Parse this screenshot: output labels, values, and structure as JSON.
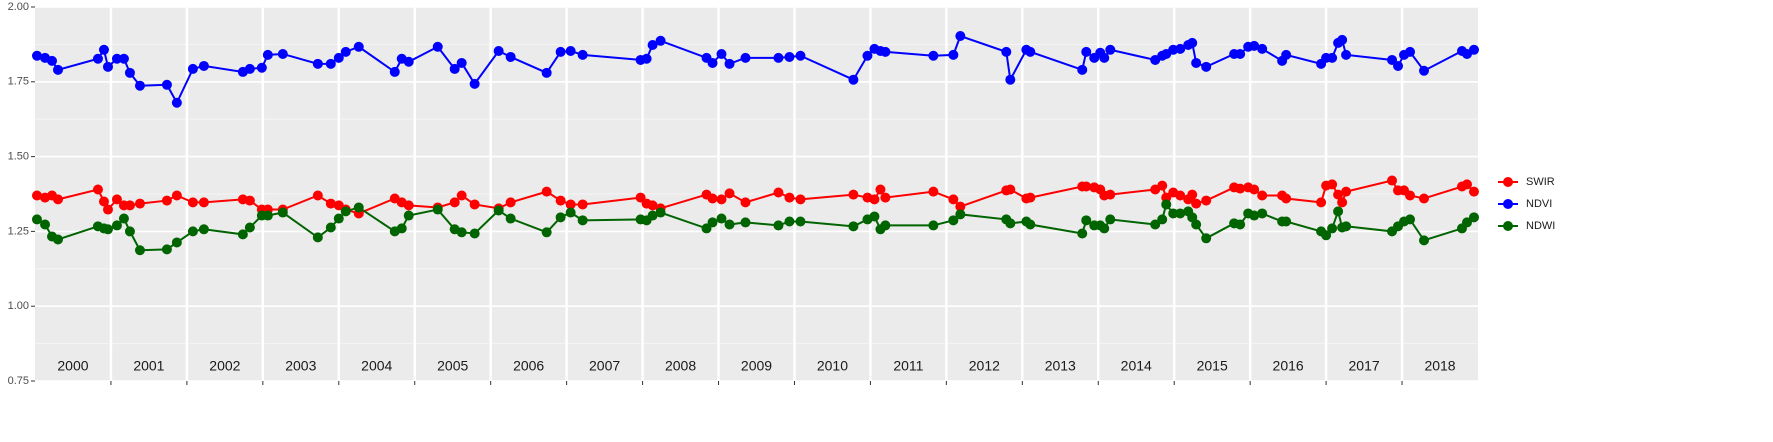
{
  "chart_data": {
    "type": "line",
    "x": [
      2000.026,
      2000.132,
      2000.224,
      2000.303,
      2000.829,
      2000.908,
      2000.961,
      2001.079,
      2001.171,
      2001.25,
      2001.382,
      2001.737,
      2001.868,
      2002.079,
      2002.224,
      2002.737,
      2002.829,
      2002.987,
      2003.066,
      2003.263,
      2003.724,
      2003.895,
      2004.0,
      2004.092,
      2004.263,
      2004.737,
      2004.829,
      2004.921,
      2005.303,
      2005.526,
      2005.618,
      2005.789,
      2006.105,
      2006.263,
      2006.737,
      2006.921,
      2007.053,
      2007.211,
      2007.974,
      2008.053,
      2008.132,
      2008.237,
      2008.842,
      2008.921,
      2009.039,
      2009.145,
      2009.355,
      2009.789,
      2009.934,
      2010.079,
      2010.776,
      2010.961,
      2011.053,
      2011.132,
      2011.197,
      2011.829,
      2012.092,
      2012.184,
      2012.789,
      2012.842,
      2013.053,
      2013.105,
      2013.789,
      2013.842,
      2013.947,
      2014.026,
      2014.079,
      2014.158,
      2014.75,
      2014.842,
      2014.895,
      2014.987,
      2015.079,
      2015.184,
      2015.237,
      2015.289,
      2015.421,
      2015.789,
      2015.868,
      2015.974,
      2016.053,
      2016.158,
      2016.421,
      2016.474,
      2016.934,
      2017.0,
      2017.079,
      2017.158,
      2017.211,
      2017.263,
      2017.868,
      2017.947,
      2018.026,
      2018.105,
      2018.289,
      2018.789,
      2018.855,
      2018.947
    ],
    "series": [
      {
        "name": "SWIR",
        "color": "#ff0000",
        "values": [
          1.37,
          1.363,
          1.37,
          1.357,
          1.39,
          1.35,
          1.323,
          1.357,
          1.337,
          1.337,
          1.343,
          1.353,
          1.37,
          1.347,
          1.347,
          1.357,
          1.353,
          1.323,
          1.323,
          1.323,
          1.37,
          1.343,
          1.337,
          1.323,
          1.31,
          1.36,
          1.347,
          1.337,
          1.33,
          1.347,
          1.37,
          1.34,
          1.327,
          1.347,
          1.383,
          1.353,
          1.34,
          1.34,
          1.363,
          1.343,
          1.337,
          1.327,
          1.373,
          1.36,
          1.357,
          1.377,
          1.347,
          1.38,
          1.363,
          1.357,
          1.373,
          1.363,
          1.357,
          1.39,
          1.363,
          1.383,
          1.357,
          1.333,
          1.387,
          1.39,
          1.36,
          1.363,
          1.4,
          1.4,
          1.397,
          1.39,
          1.37,
          1.373,
          1.39,
          1.403,
          1.363,
          1.38,
          1.37,
          1.357,
          1.373,
          1.343,
          1.353,
          1.397,
          1.393,
          1.397,
          1.39,
          1.37,
          1.37,
          1.36,
          1.347,
          1.403,
          1.407,
          1.373,
          1.347,
          1.383,
          1.42,
          1.387,
          1.387,
          1.37,
          1.36,
          1.4,
          1.407,
          1.383
        ]
      },
      {
        "name": "NDVI",
        "color": "#0000ff",
        "values": [
          1.837,
          1.83,
          1.82,
          1.79,
          1.827,
          1.857,
          1.8,
          1.827,
          1.827,
          1.78,
          1.737,
          1.74,
          1.68,
          1.793,
          1.803,
          1.783,
          1.793,
          1.797,
          1.84,
          1.843,
          1.81,
          1.81,
          1.83,
          1.85,
          1.867,
          1.783,
          1.827,
          1.817,
          1.867,
          1.793,
          1.813,
          1.743,
          1.853,
          1.833,
          1.78,
          1.85,
          1.853,
          1.84,
          1.823,
          1.827,
          1.873,
          1.887,
          1.83,
          1.813,
          1.843,
          1.81,
          1.83,
          1.83,
          1.833,
          1.837,
          1.757,
          1.837,
          1.86,
          1.853,
          1.85,
          1.837,
          1.84,
          1.903,
          1.85,
          1.757,
          1.857,
          1.85,
          1.79,
          1.85,
          1.83,
          1.847,
          1.83,
          1.857,
          1.823,
          1.837,
          1.843,
          1.857,
          1.86,
          1.873,
          1.88,
          1.813,
          1.8,
          1.843,
          1.843,
          1.867,
          1.87,
          1.86,
          1.82,
          1.84,
          1.81,
          1.83,
          1.83,
          1.88,
          1.89,
          1.84,
          1.823,
          1.803,
          1.84,
          1.85,
          1.787,
          1.853,
          1.843,
          1.857
        ]
      },
      {
        "name": "NDWI",
        "color": "#006400",
        "values": [
          1.29,
          1.273,
          1.233,
          1.223,
          1.267,
          1.26,
          1.257,
          1.27,
          1.293,
          1.25,
          1.187,
          1.19,
          1.213,
          1.25,
          1.257,
          1.24,
          1.263,
          1.303,
          1.303,
          1.313,
          1.23,
          1.263,
          1.293,
          1.317,
          1.33,
          1.25,
          1.26,
          1.303,
          1.323,
          1.257,
          1.247,
          1.243,
          1.32,
          1.293,
          1.247,
          1.297,
          1.313,
          1.287,
          1.29,
          1.287,
          1.303,
          1.313,
          1.26,
          1.28,
          1.293,
          1.273,
          1.28,
          1.27,
          1.283,
          1.283,
          1.267,
          1.29,
          1.3,
          1.257,
          1.27,
          1.27,
          1.287,
          1.307,
          1.29,
          1.277,
          1.283,
          1.273,
          1.243,
          1.287,
          1.27,
          1.27,
          1.26,
          1.29,
          1.273,
          1.29,
          1.34,
          1.31,
          1.31,
          1.317,
          1.297,
          1.273,
          1.227,
          1.277,
          1.273,
          1.31,
          1.303,
          1.31,
          1.283,
          1.283,
          1.25,
          1.237,
          1.26,
          1.317,
          1.263,
          1.267,
          1.25,
          1.267,
          1.283,
          1.29,
          1.22,
          1.26,
          1.28,
          1.297
        ]
      }
    ],
    "year_labels": [
      "2000",
      "2001",
      "2002",
      "2003",
      "2004",
      "2005",
      "2006",
      "2007",
      "2008",
      "2009",
      "2010",
      "2011",
      "2012",
      "2013",
      "2014",
      "2015",
      "2016",
      "2017",
      "2018"
    ],
    "year_breaks": [
      2001,
      2002,
      2003,
      2004,
      2005,
      2006,
      2007,
      2008,
      2009,
      2010,
      2011,
      2012,
      2013,
      2014,
      2015,
      2016,
      2017,
      2018
    ],
    "xlim": [
      2000,
      2019
    ],
    "ylim": [
      0.75,
      2.0
    ],
    "yticks": [
      0.75,
      {
        "value": 1.0,
        "label": "1.00"
      },
      1.25,
      {
        "value": 1.5,
        "label": "1.50"
      },
      1.75,
      {
        "value": 2.0,
        "label": "2.00"
      }
    ],
    "grid": true,
    "legend": "right"
  }
}
